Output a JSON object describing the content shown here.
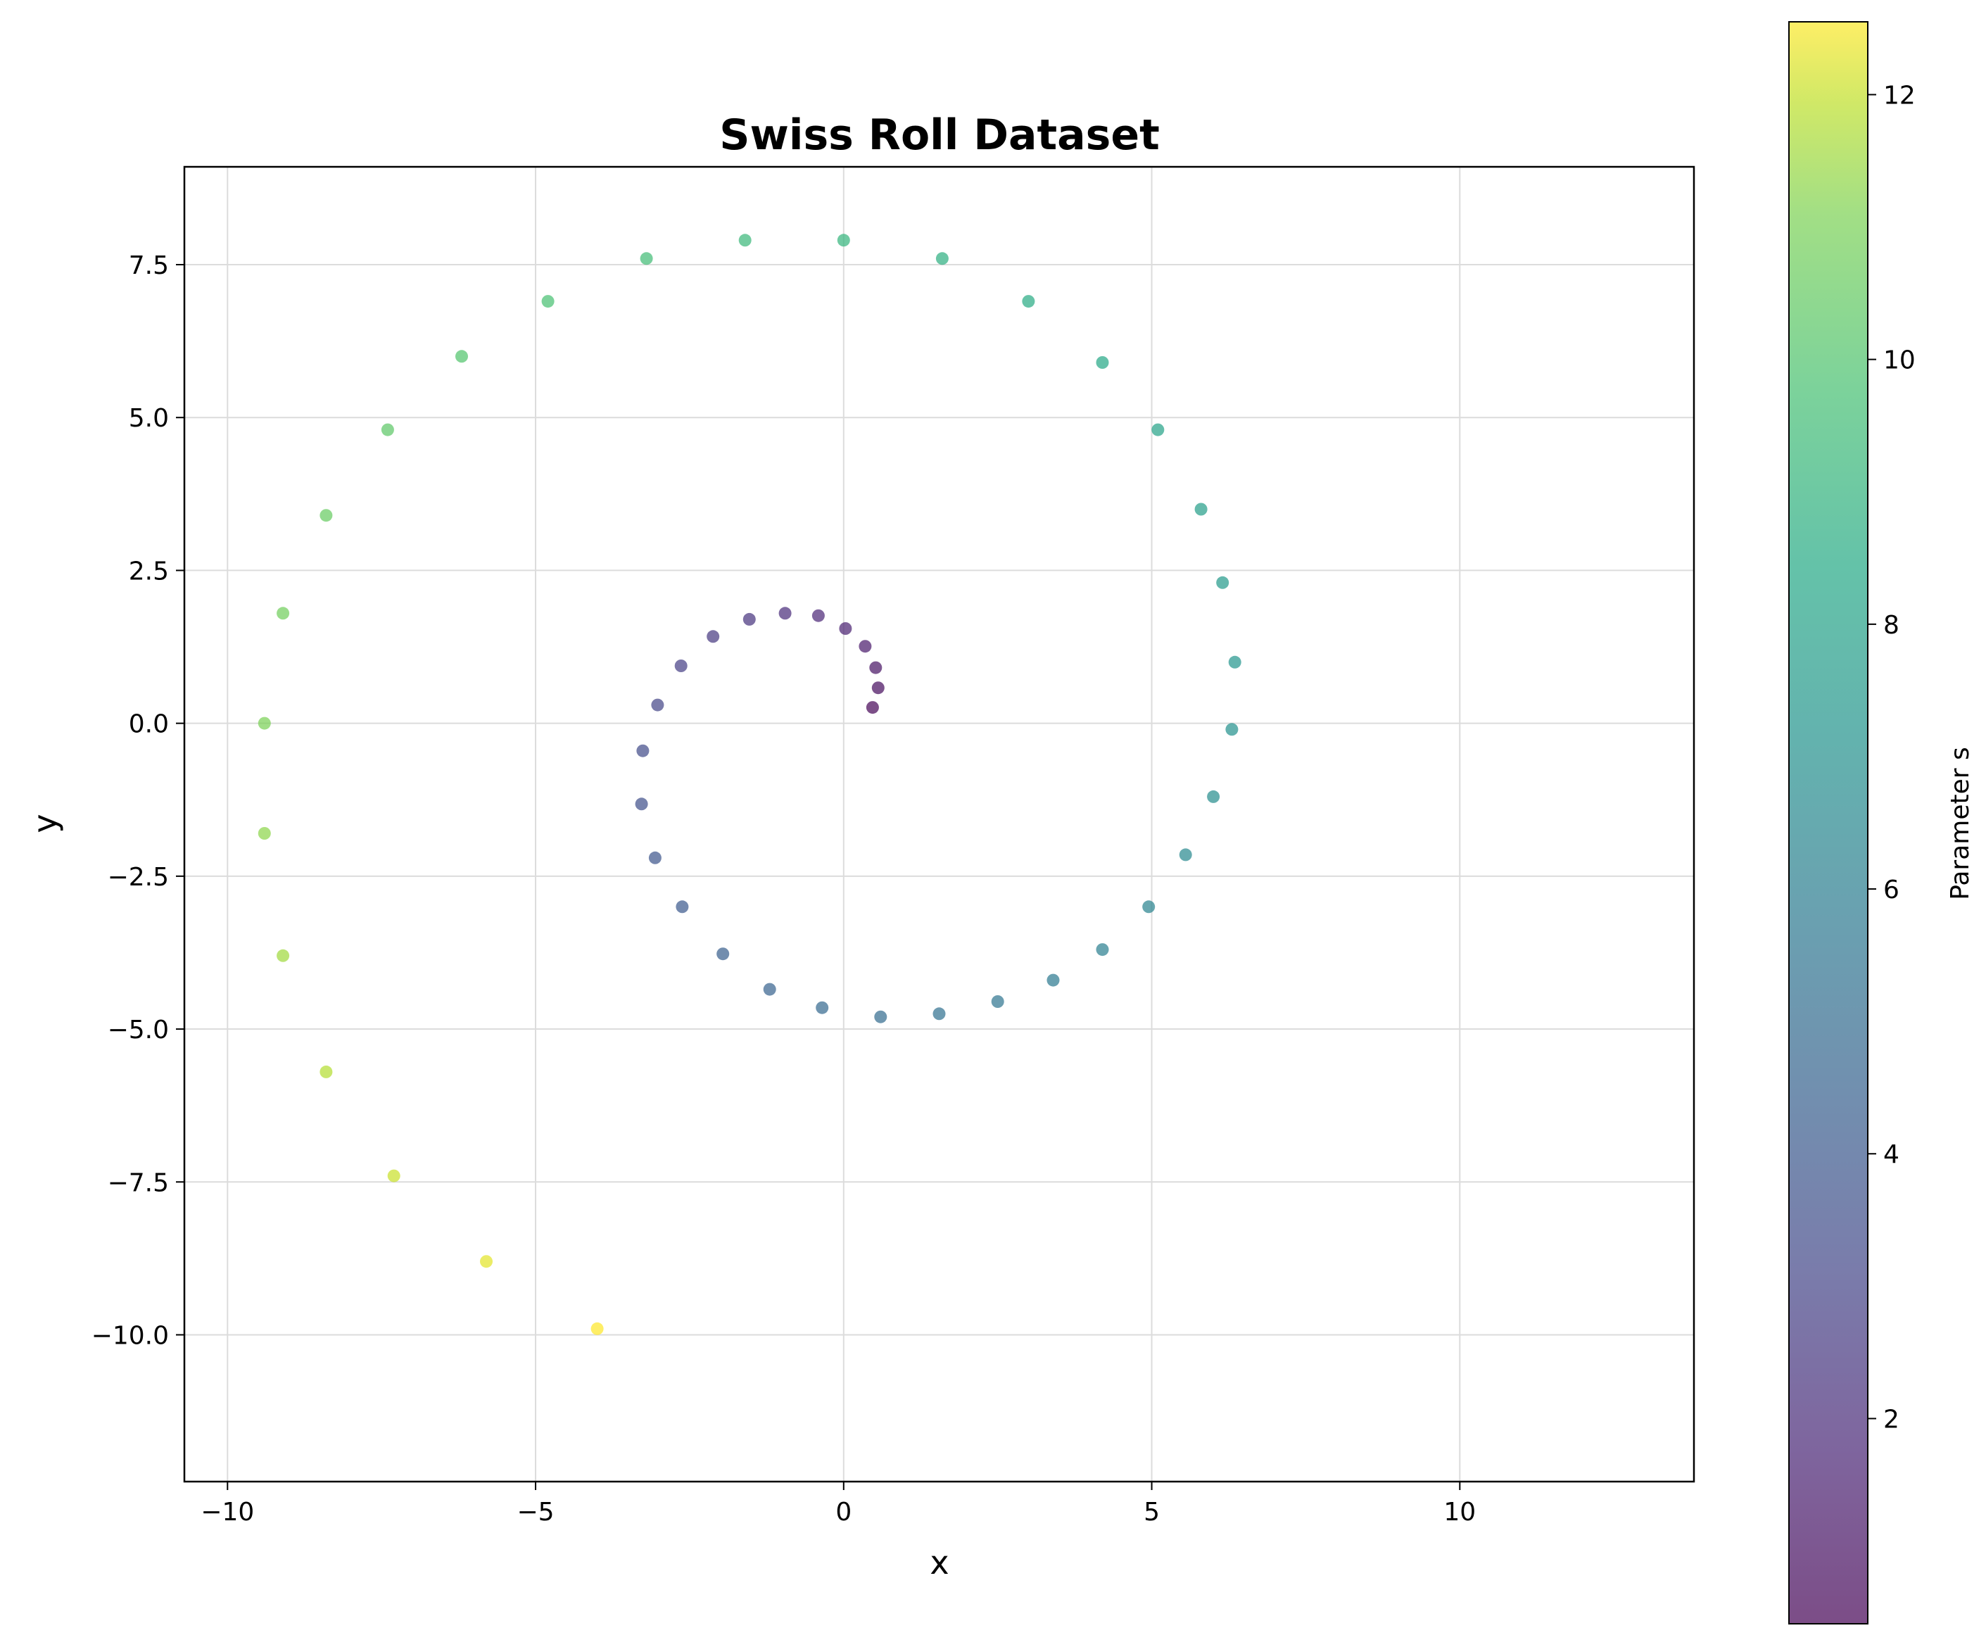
{
  "chart_data": {
    "type": "scatter",
    "title": "Swiss Roll Dataset",
    "xlabel": "x",
    "ylabel": "y",
    "xlim": [
      -10.7,
      13.8
    ],
    "ylim": [
      -12.4,
      9.1
    ],
    "xticks": [
      -10,
      -5,
      0,
      5,
      10
    ],
    "xtick_labels": [
      "−10",
      "−5",
      "0",
      "5",
      "10"
    ],
    "yticks": [
      -10.0,
      -7.5,
      -5.0,
      -2.5,
      0.0,
      2.5,
      5.0,
      7.5
    ],
    "ytick_labels": [
      "−10.0",
      "−7.5",
      "−5.0",
      "−2.5",
      "0.0",
      "2.5",
      "5.0",
      "7.5"
    ],
    "grid": true,
    "colorbar": {
      "label": "Parameter s",
      "range": [
        0.45,
        12.55
      ],
      "ticks": [
        2,
        4,
        6,
        8,
        10,
        12
      ],
      "tick_labels": [
        "2",
        "4",
        "6",
        "8",
        "10",
        "12"
      ],
      "colormap": "viridis"
    },
    "point_alpha": 0.7,
    "points": [
      {
        "s": 0.55,
        "x": 0.47,
        "y": 0.26
      },
      {
        "s": 0.8,
        "x": 0.56,
        "y": 0.58
      },
      {
        "s": 1.05,
        "x": 0.52,
        "y": 0.91
      },
      {
        "s": 1.3,
        "x": 0.35,
        "y": 1.26
      },
      {
        "s": 1.55,
        "x": 0.03,
        "y": 1.55
      },
      {
        "s": 1.8,
        "x": -0.41,
        "y": 1.76
      },
      {
        "s": 2.05,
        "x": -0.95,
        "y": 1.8
      },
      {
        "s": 2.3,
        "x": -1.53,
        "y": 1.7
      },
      {
        "s": 2.55,
        "x": -2.12,
        "y": 1.42
      },
      {
        "s": 2.8,
        "x": -2.64,
        "y": 0.94
      },
      {
        "s": 3.05,
        "x": -3.02,
        "y": 0.3
      },
      {
        "s": 3.3,
        "x": -3.26,
        "y": -0.45
      },
      {
        "s": 3.55,
        "x": -3.28,
        "y": -1.32
      },
      {
        "s": 3.8,
        "x": -3.06,
        "y": -2.2
      },
      {
        "s": 4.05,
        "x": -2.62,
        "y": -3.0
      },
      {
        "s": 4.3,
        "x": -1.96,
        "y": -3.77
      },
      {
        "s": 4.55,
        "x": -1.2,
        "y": -4.35
      },
      {
        "s": 4.8,
        "x": -0.35,
        "y": -4.65
      },
      {
        "s": 5.05,
        "x": 0.6,
        "y": -4.8
      },
      {
        "s": 5.3,
        "x": 1.55,
        "y": -4.75
      },
      {
        "s": 5.55,
        "x": 2.5,
        "y": -4.55
      },
      {
        "s": 5.8,
        "x": 3.4,
        "y": -4.2
      },
      {
        "s": 6.05,
        "x": 4.2,
        "y": -3.7
      },
      {
        "s": 6.3,
        "x": 4.95,
        "y": -3.0
      },
      {
        "s": 6.55,
        "x": 5.55,
        "y": -2.15
      },
      {
        "s": 6.8,
        "x": 6.0,
        "y": -1.2
      },
      {
        "s": 7.05,
        "x": 6.3,
        "y": -0.1
      },
      {
        "s": 7.3,
        "x": 6.35,
        "y": 1.0
      },
      {
        "s": 7.55,
        "x": 6.15,
        "y": 2.3
      },
      {
        "s": 7.8,
        "x": 5.8,
        "y": 3.5
      },
      {
        "s": 8.05,
        "x": 5.1,
        "y": 4.8
      },
      {
        "s": 8.3,
        "x": 4.2,
        "y": 5.9
      },
      {
        "s": 8.55,
        "x": 3.0,
        "y": 6.9
      },
      {
        "s": 8.8,
        "x": 1.6,
        "y": 7.6
      },
      {
        "s": 9.05,
        "x": 0.0,
        "y": 7.9
      },
      {
        "s": 9.3,
        "x": -1.6,
        "y": 7.9
      },
      {
        "s": 9.55,
        "x": -3.2,
        "y": 7.6
      },
      {
        "s": 9.8,
        "x": -4.8,
        "y": 6.9
      },
      {
        "s": 10.05,
        "x": -6.2,
        "y": 6.0
      },
      {
        "s": 10.3,
        "x": -7.4,
        "y": 4.8
      },
      {
        "s": 10.55,
        "x": -8.4,
        "y": 3.4
      },
      {
        "s": 10.8,
        "x": -9.1,
        "y": 1.8
      },
      {
        "s": 11.05,
        "x": -9.4,
        "y": 0.0
      },
      {
        "s": 11.3,
        "x": -9.4,
        "y": -1.8
      },
      {
        "s": 11.55,
        "x": -9.1,
        "y": -3.8
      },
      {
        "s": 11.8,
        "x": -8.4,
        "y": -5.7
      },
      {
        "s": 12.05,
        "x": -7.3,
        "y": -7.4
      },
      {
        "s": 12.3,
        "x": -5.8,
        "y": -8.8
      },
      {
        "s": 12.55,
        "x": -4.0,
        "y": -9.9
      }
    ]
  }
}
